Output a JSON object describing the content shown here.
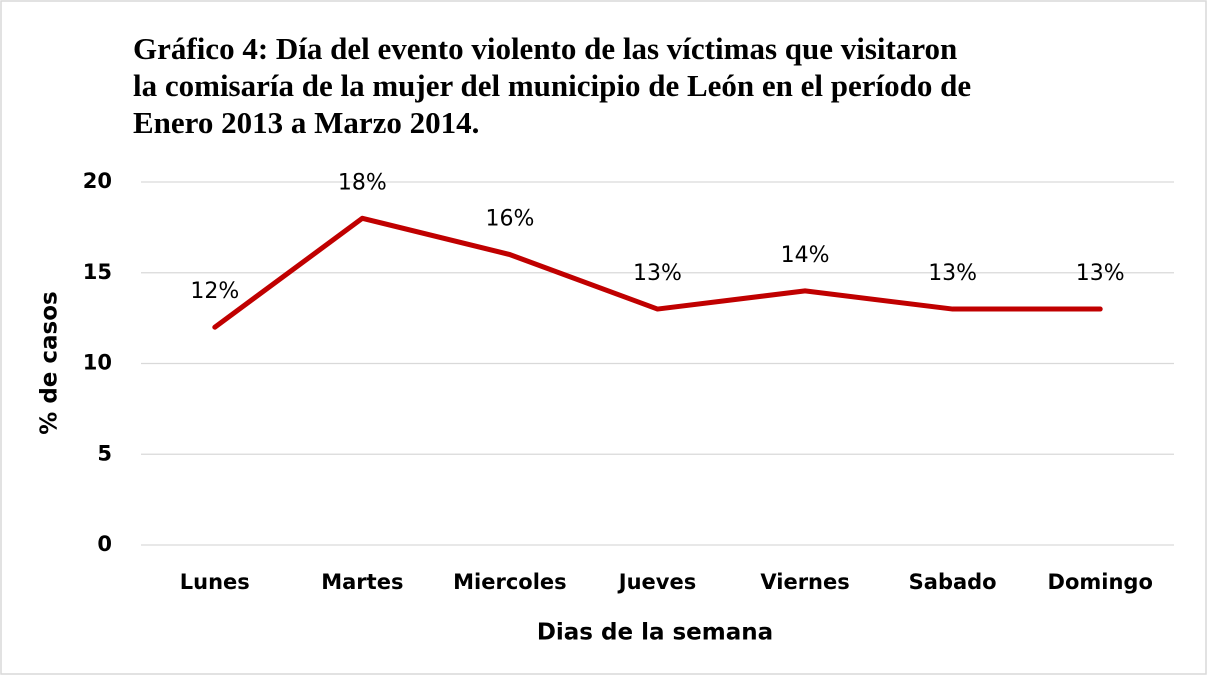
{
  "chart_data": {
    "type": "line",
    "title": "Gráfico 4: Día del evento violento de las víctimas que visitaron\nla  comisaría de la mujer del municipio de León en el período de\nEnero 2013 a Marzo 2014.",
    "x_label": "Dias de la semana",
    "y_label": "% de casos",
    "categories": [
      "Lunes",
      "Martes",
      "Miercoles",
      "Jueves",
      "Viernes",
      "Sabado",
      "Domingo"
    ],
    "series": [
      {
        "name": "% de casos",
        "color": "#c00000",
        "values": [
          12,
          18,
          16,
          13,
          14,
          13,
          13
        ],
        "value_labels": [
          "12%",
          "18%",
          "16%",
          "13%",
          "14%",
          "13%",
          "13%"
        ]
      }
    ],
    "ylim": [
      0,
      20
    ],
    "yticks": [
      0,
      5,
      10,
      15,
      20
    ],
    "grid": true
  }
}
